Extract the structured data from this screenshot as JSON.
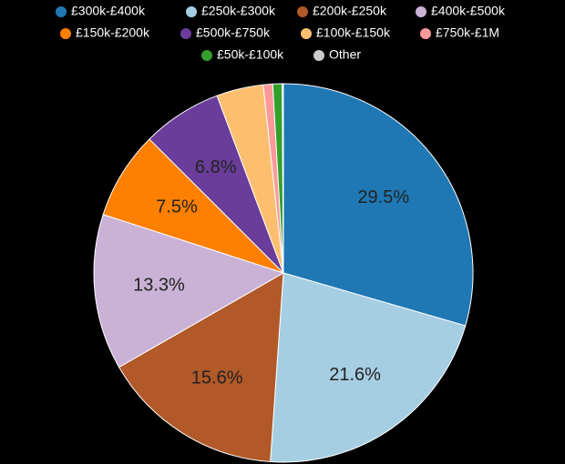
{
  "chart_data": {
    "type": "pie",
    "categories": [
      "£300k-£400k",
      "£250k-£300k",
      "£200k-£250k",
      "£400k-£500k",
      "£150k-£200k",
      "£500k-£750k",
      "£100k-£150k",
      "£750k-£1M",
      "£50k-£100k",
      "Other"
    ],
    "values": [
      29.5,
      21.6,
      15.6,
      13.3,
      7.5,
      6.8,
      4.0,
      0.8,
      0.8,
      0.1
    ],
    "value_labels": [
      "29.5%",
      "21.6%",
      "15.6%",
      "13.3%",
      "7.5%",
      "6.8%",
      null,
      null,
      null,
      null
    ],
    "colors": [
      "#1f78b4",
      "#a6cee3",
      "#b15928",
      "#cab2d6",
      "#ff7f00",
      "#6a3d9a",
      "#fdbf6f",
      "#fb9a99",
      "#33a02c",
      "#cccccc"
    ]
  }
}
